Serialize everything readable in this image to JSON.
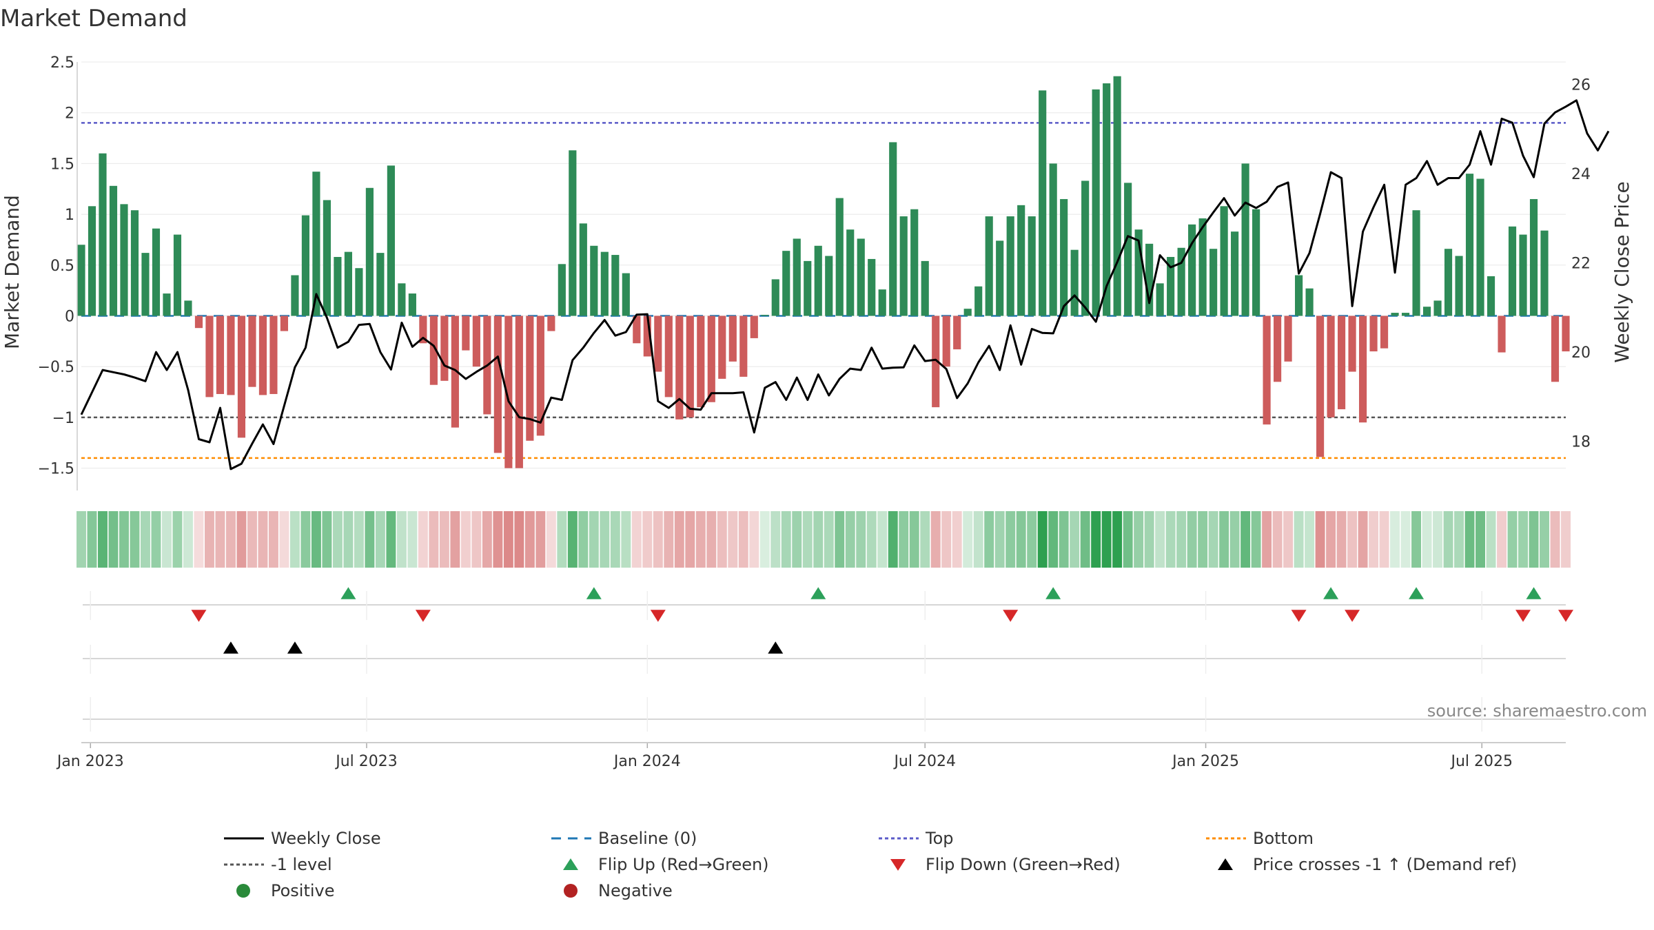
{
  "chart_data": {
    "type": "bar+line",
    "title": "Market Demand",
    "ylabel_left": "Market Demand",
    "ylabel_right": "Weekly Close Price",
    "source": "source: sharemaestro.com",
    "left_ticks": [
      2.5,
      2,
      1.5,
      1,
      0.5,
      0,
      -0.5,
      -1,
      -1.5
    ],
    "left_tick_labels": [
      "2.5",
      "2",
      "1.5",
      "1",
      "0.5",
      "0",
      "−0.5",
      "−1",
      "−1.5"
    ],
    "right_ticks": [
      26,
      24,
      22,
      20,
      18
    ],
    "right_tick_labels": [
      "26",
      "24",
      "22",
      "20",
      "18"
    ],
    "ylim_left": [
      -1.72,
      2.5
    ],
    "ylim_right": [
      16.9,
      26.5
    ],
    "start_date": "2022-12-26",
    "end_date": "2025-08-25",
    "x_ticks": [
      {
        "label": "Jan 2023",
        "date": "2023-01-01"
      },
      {
        "label": "Jul 2023",
        "date": "2023-07-01"
      },
      {
        "label": "Jan 2024",
        "date": "2024-01-01"
      },
      {
        "label": "Jul 2024",
        "date": "2024-07-01"
      },
      {
        "label": "Jan 2025",
        "date": "2025-01-01"
      },
      {
        "label": "Jul 2025",
        "date": "2025-07-01"
      }
    ],
    "reference_lines": {
      "top": 1.9,
      "bottom": -1.4,
      "minus_one": -1,
      "baseline": 0
    },
    "demand": [
      0.7,
      1.08,
      1.6,
      1.28,
      1.1,
      1.04,
      0.62,
      0.86,
      0.22,
      0.8,
      0.15,
      -0.12,
      -0.8,
      -0.77,
      -0.78,
      -1.2,
      -0.7,
      -0.78,
      -0.77,
      -0.15,
      0.4,
      0.99,
      1.42,
      1.14,
      0.58,
      0.63,
      0.47,
      1.26,
      0.62,
      1.48,
      0.32,
      0.22,
      -0.27,
      -0.68,
      -0.64,
      -1.1,
      -0.34,
      -0.5,
      -0.97,
      -1.35,
      -1.5,
      -1.5,
      -1.23,
      -1.18,
      -0.15,
      0.51,
      1.63,
      0.91,
      0.69,
      0.63,
      0.6,
      0.42,
      -0.27,
      -0.4,
      -0.55,
      -0.8,
      -1.02,
      -1.0,
      -0.9,
      -0.85,
      -0.62,
      -0.45,
      -0.6,
      -0.22,
      0.01,
      0.36,
      0.64,
      0.76,
      0.54,
      0.69,
      0.59,
      1.16,
      0.85,
      0.76,
      0.56,
      0.26,
      1.71,
      0.98,
      1.05,
      0.54,
      -0.9,
      -0.5,
      -0.33,
      0.07,
      0.29,
      0.98,
      0.74,
      0.98,
      1.09,
      0.98,
      2.22,
      1.5,
      1.15,
      0.65,
      1.33,
      2.23,
      2.29,
      2.36,
      1.31,
      0.85,
      0.71,
      0.32,
      0.58,
      0.67,
      0.9,
      0.96,
      0.66,
      1.08,
      0.83,
      1.5,
      1.05,
      -1.07,
      -0.65,
      -0.45,
      0.4,
      0.27,
      -1.39,
      -1.0,
      -0.92,
      -0.55,
      -1.05,
      -0.35,
      -0.32,
      0.03,
      0.03,
      1.04,
      0.09,
      0.15,
      0.66,
      0.59,
      1.4,
      1.35,
      0.39,
      -0.36,
      0.88,
      0.8,
      1.15,
      0.84,
      -0.65,
      -0.35
    ],
    "weekly_close": [
      18.6,
      19.1,
      19.6,
      19.55,
      19.5,
      19.43,
      19.35,
      20.0,
      19.6,
      20.0,
      19.15,
      18.05,
      17.98,
      18.75,
      17.38,
      17.5,
      17.95,
      18.38,
      17.94,
      18.8,
      19.66,
      20.1,
      21.3,
      20.77,
      20.1,
      20.23,
      20.61,
      20.63,
      20.0,
      19.61,
      20.66,
      20.12,
      20.32,
      20.14,
      19.7,
      19.6,
      19.4,
      19.56,
      19.7,
      19.9,
      18.9,
      18.54,
      18.5,
      18.42,
      18.98,
      18.93,
      19.82,
      20.1,
      20.43,
      20.72,
      20.37,
      20.45,
      20.84,
      20.85,
      18.9,
      18.75,
      18.95,
      18.73,
      18.71,
      19.08,
      19.08,
      19.08,
      19.1,
      18.2,
      19.2,
      19.33,
      18.93,
      19.43,
      18.93,
      19.5,
      19.03,
      19.4,
      19.63,
      19.6,
      20.1,
      19.63,
      19.65,
      19.66,
      20.15,
      19.8,
      19.83,
      19.62,
      18.97,
      19.3,
      19.77,
      20.14,
      19.6,
      20.6,
      19.72,
      20.52,
      20.43,
      20.42,
      21.03,
      21.27,
      21.0,
      20.68,
      21.48,
      22.02,
      22.6,
      22.5,
      21.1,
      22.17,
      21.9,
      22.0,
      22.44,
      22.8,
      23.13,
      23.45,
      23.06,
      23.35,
      23.23,
      23.37,
      23.7,
      23.8,
      21.76,
      22.22,
      23.1,
      24.03,
      23.9,
      21.03,
      22.7,
      23.25,
      23.75,
      21.78,
      23.75,
      23.9,
      24.28,
      23.75,
      23.9,
      23.9,
      24.2,
      24.95,
      24.2,
      25.23,
      25.14,
      24.4,
      23.92,
      25.12,
      25.37,
      25.5,
      25.64,
      24.9,
      24.52,
      24.95
    ],
    "flip_up_dates": [
      "2023-06-19",
      "2023-11-27",
      "2024-04-22",
      "2024-09-23",
      "2025-03-24",
      "2025-05-19",
      "2025-08-04"
    ],
    "flip_down_dates": [
      "2023-03-13",
      "2023-08-07",
      "2024-01-08",
      "2024-08-26",
      "2025-03-03",
      "2025-04-07",
      "2025-07-28",
      "2025-08-25"
    ],
    "price_cross_dates": [
      "2023-04-03",
      "2023-05-15",
      "2024-03-25"
    ],
    "legend": [
      {
        "label": "Weekly Close",
        "symbol": "line",
        "color": "#000000"
      },
      {
        "label": "Baseline (0)",
        "symbol": "dash",
        "color": "#1f77b4"
      },
      {
        "label": "Top",
        "symbol": "dot",
        "color": "#5a5ac8"
      },
      {
        "label": "Bottom",
        "symbol": "dot",
        "color": "#ff8c00"
      },
      {
        "label": "-1 level",
        "symbol": "dot",
        "color": "#555555"
      },
      {
        "label": "Flip Up (Red→Green)",
        "symbol": "triangle-up",
        "color": "#2ca05a"
      },
      {
        "label": "Flip Down (Green→Red)",
        "symbol": "triangle-down",
        "color": "#d62728"
      },
      {
        "label": "Price crosses -1 ↑ (Demand ref)",
        "symbol": "triangle-up",
        "color": "#000000"
      },
      {
        "label": "Positive",
        "symbol": "circle",
        "color": "#2a8a3a"
      },
      {
        "label": "Negative",
        "symbol": "circle",
        "color": "#b22222"
      }
    ]
  },
  "colors": {
    "positive_bar": "#2e8b57",
    "negative_bar": "#cd5c5c",
    "price_line": "#000000",
    "top_line": "#5a5ac8",
    "bottom_line": "#ff8c00",
    "minus_one_line": "#555555",
    "baseline": "#1f77b4",
    "flip_up": "#2ca05a",
    "flip_down": "#d62728",
    "cross": "#000000"
  }
}
